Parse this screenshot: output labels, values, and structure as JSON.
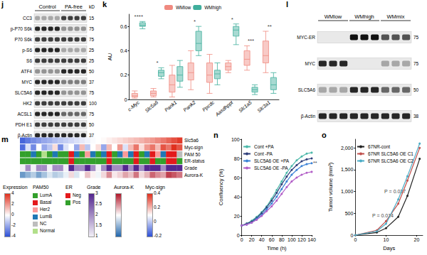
{
  "blots": [
    {
      "panel": "j",
      "kD_label": "kD",
      "groups": [
        {
          "label": "Control",
          "lanes": 4
        },
        {
          "label": "PA-free",
          "lanes": 4
        }
      ],
      "rows": [
        {
          "label": "CC3",
          "kD": 15,
          "intensity": [
            0.3,
            0.3,
            0.3,
            0.3,
            0.8,
            0.8,
            0.8,
            0.8
          ]
        },
        {
          "label": "p-P70 S6k",
          "kD": 75,
          "intensity": [
            0.9,
            0.9,
            0.9,
            0.9,
            0.4,
            0.4,
            0.4,
            0.4
          ]
        },
        {
          "label": "P70 S6k",
          "kD": 75,
          "intensity": [
            0.8,
            0.8,
            0.8,
            0.8,
            0.8,
            0.8,
            0.8,
            0.8
          ]
        },
        {
          "label": "p-S6",
          "kD": 25,
          "intensity": [
            0.9,
            0.9,
            0.9,
            0.9,
            0.3,
            0.3,
            0.3,
            0.3
          ]
        },
        {
          "label": "S6",
          "kD": 25,
          "intensity": [
            0.8,
            0.8,
            0.8,
            0.8,
            0.8,
            0.8,
            0.8,
            0.8
          ]
        },
        {
          "label": "ATF4",
          "kD": 50,
          "intensity": [
            0.4,
            0.4,
            0.4,
            0.4,
            0.9,
            0.9,
            0.9,
            0.9
          ]
        },
        {
          "label": "MYC",
          "kD": 37,
          "intensity": [
            0.9,
            0.9,
            0.9,
            0.9,
            0.5,
            0.5,
            0.5,
            0.5
          ]
        },
        {
          "label": "SLC5A6",
          "kD": 75,
          "intensity": [
            0.9,
            0.9,
            0.9,
            0.9,
            0.4,
            0.4,
            0.4,
            0.4
          ]
        },
        {
          "label": "HK2",
          "kD": 100,
          "intensity": [
            0.8,
            0.8,
            0.8,
            0.8,
            0.8,
            0.8,
            0.8,
            0.8
          ]
        },
        {
          "label": "ACSL1",
          "kD": 75,
          "intensity": [
            0.9,
            0.9,
            0.9,
            0.9,
            0.6,
            0.6,
            0.6,
            0.6
          ]
        },
        {
          "label": "PDH E1",
          "kD": 50,
          "intensity": [
            0.8,
            0.8,
            0.8,
            0.8,
            0.8,
            0.8,
            0.8,
            0.8
          ]
        },
        {
          "label": "β-Actin",
          "kD": 37,
          "intensity": [
            0.9,
            0.9,
            0.9,
            0.9,
            0.9,
            0.9,
            0.9,
            0.9
          ]
        }
      ]
    },
    {
      "panel": "l",
      "groups": [
        {
          "label": "WMlow",
          "lanes": 3
        },
        {
          "label": "WMhigh",
          "lanes": 3
        },
        {
          "label": "WMmix",
          "lanes": 3
        }
      ],
      "rows": [
        {
          "label": "MYC-ER",
          "kD": 75,
          "intensity": [
            0,
            0,
            0,
            1,
            1,
            1,
            0.7,
            0.7,
            0.7
          ]
        },
        {
          "label": "MYC",
          "kD": 75,
          "intensity": [
            0.9,
            0.9,
            0.9,
            0,
            0,
            0,
            0.3,
            0.3,
            0.3
          ]
        },
        {
          "label": "SLC5A6",
          "kD": 50,
          "intensity": [
            0.3,
            0.3,
            0.3,
            0.9,
            0.9,
            0.9,
            0.6,
            0.6,
            0.6
          ]
        },
        {
          "label": "β-Actin",
          "kD": 38,
          "intensity": [
            0.9,
            0.9,
            0.9,
            0.9,
            0.9,
            0.9,
            0.9,
            0.9,
            0.9
          ]
        }
      ]
    }
  ],
  "chart_data": [
    {
      "panel": "k",
      "type": "boxplot",
      "y_label": "AU",
      "legend": "top",
      "grid": false,
      "categories": [
        "c-Myc",
        "Slc5a6",
        "Pank1",
        "Pank2",
        "Ppcdc",
        "Aasdhppt",
        "Slc1a5",
        "Slc3a1"
      ],
      "ylim": [
        0,
        0.7
      ],
      "yticks": [
        0,
        0.2,
        0.4,
        0.6
      ],
      "series": [
        {
          "name": "WMlow",
          "color": "#f08a80",
          "boxes": [
            [
              0.01,
              0.02,
              0.03,
              0.05,
              0.07
            ],
            [
              0.02,
              0.03,
              0.05,
              0.07,
              0.09
            ],
            [
              0.02,
              0.06,
              0.12,
              0.2,
              0.28
            ],
            [
              0.08,
              0.16,
              0.22,
              0.3,
              0.4
            ],
            [
              0.05,
              0.14,
              0.2,
              0.3,
              0.37
            ],
            [
              0.22,
              0.24,
              0.27,
              0.3,
              0.32
            ],
            [
              0.24,
              0.28,
              0.33,
              0.4,
              0.44
            ],
            [
              0.22,
              0.3,
              0.36,
              0.48,
              0.56
            ]
          ]
        },
        {
          "name": "WMhigh",
          "color": "#3fae9c",
          "boxes": [
            [
              0.58,
              0.6,
              0.61,
              0.63,
              0.64
            ],
            [
              0.17,
              0.19,
              0.22,
              0.24,
              0.26
            ],
            [
              0.1,
              0.15,
              0.2,
              0.27,
              0.32
            ],
            [
              0.36,
              0.4,
              0.46,
              0.56,
              0.6
            ],
            [
              0.12,
              0.17,
              0.21,
              0.24,
              0.3
            ],
            [
              0.45,
              0.52,
              0.57,
              0.6,
              0.62
            ],
            [
              0.04,
              0.06,
              0.08,
              0.1,
              0.12
            ],
            [
              0.05,
              0.08,
              0.12,
              0.18,
              0.22
            ]
          ]
        }
      ],
      "annotations": [
        {
          "category": "c-Myc",
          "y": 0.65,
          "text": "****"
        },
        {
          "category": "Slc5a6",
          "y": 0.27,
          "text": "*"
        },
        {
          "category": "Pank2",
          "y": 0.61,
          "text": "*"
        },
        {
          "category": "Aasdhppt",
          "y": 0.63,
          "text": "*"
        },
        {
          "category": "Slc1a5",
          "y": 0.45,
          "text": "***"
        },
        {
          "category": "Slc3a1",
          "y": 0.57,
          "text": "**"
        }
      ]
    },
    {
      "panel": "m",
      "type": "heatmap",
      "tracks": [
        {
          "name": "Slc5a6",
          "legend": "Expression",
          "values": [
            -3.5,
            -3,
            -2.6,
            -2.3,
            -2,
            -1.8,
            -1.5,
            -1.3,
            -1.1,
            -0.9,
            -0.7,
            -0.5,
            -0.3,
            -0.1,
            0,
            0.1,
            0.3,
            0.5,
            0.7,
            0.9,
            1.1,
            1.3,
            1.5,
            1.8,
            2,
            2.3,
            2.6,
            3,
            3.4,
            3.8
          ]
        },
        {
          "name": "Myc-sign",
          "legend": "Myc-sign",
          "values": [
            -0.15,
            0.05,
            -0.1,
            0.1,
            -0.05,
            0,
            0.15,
            -0.1,
            0.05,
            0.1,
            -0.05,
            0.2,
            0,
            0.1,
            0.15,
            -0.05,
            0.2,
            0.1,
            0.25,
            0.05,
            0.2,
            0.3,
            0.15,
            0.25,
            0.3,
            0.2,
            0.35,
            0.3,
            0.4,
            0.35
          ]
        },
        {
          "name": "PAM 50",
          "legend": "PAM50",
          "values": [
            "LumA",
            "LumA",
            "LumB",
            "LumA",
            "Normal",
            "LumA",
            "LumB",
            "LumA",
            "LumA",
            "Basal",
            "LumB",
            "LumA",
            "Her2",
            "LumB",
            "LumA",
            "LumB",
            "Basal",
            "LumA",
            "LumB",
            "Her2",
            "LumB",
            "Basal",
            "LumA",
            "LumB",
            "Basal",
            "Her2",
            "LumB",
            "Basal",
            "Basal",
            "NC"
          ]
        },
        {
          "name": "ER-status",
          "legend": "ER",
          "values": [
            "Pos",
            "Pos",
            "Pos",
            "Pos",
            "Pos",
            "Pos",
            "Pos",
            "Pos",
            "Pos",
            "Neg",
            "Pos",
            "Pos",
            "Pos",
            "Pos",
            "Pos",
            "Pos",
            "Neg",
            "Pos",
            "Pos",
            "Pos",
            "Pos",
            "Neg",
            "Pos",
            "Pos",
            "Neg",
            "Pos",
            "Pos",
            "Neg",
            "Neg",
            "Pos"
          ]
        },
        {
          "name": "Grade",
          "legend": "Grade",
          "values": [
            1,
            2,
            1,
            2,
            2,
            1,
            2,
            2,
            1,
            3,
            2,
            2,
            3,
            2,
            1,
            2,
            3,
            2,
            2,
            3,
            2,
            3,
            2,
            3,
            3,
            3,
            2,
            3,
            3,
            3
          ]
        },
        {
          "name": "Aurora-K",
          "legend": "Aurora-K",
          "values": [
            -2,
            -1.5,
            -1,
            -1.8,
            -1.2,
            -0.5,
            -1,
            -0.8,
            -0.3,
            0.5,
            -0.5,
            0,
            0.8,
            0.2,
            -0.2,
            0.5,
            1.5,
            0.3,
            0.6,
            1.2,
            0.8,
            1.8,
            0.5,
            1,
            2,
            1.5,
            1.2,
            2.5,
            2.2,
            1.8
          ]
        }
      ],
      "color_legends": [
        {
          "title": "Expression",
          "range": [
            -4,
            4
          ],
          "ticks": [
            4,
            2,
            0,
            -2,
            -4
          ],
          "colors": [
            "#2c4fd6",
            "#ffffff",
            "#e0301e"
          ]
        },
        {
          "title": "PAM50",
          "categories": [
            "LumA",
            "Basal",
            "Her2",
            "LumB",
            "NC",
            "Normal"
          ],
          "colors": [
            "#33a02c",
            "#e31a1c",
            "#fb9a99",
            "#1f78b4",
            "#bdbdbd",
            "#b2df8a"
          ]
        },
        {
          "title": "ER",
          "categories": [
            "Neg",
            "Pos"
          ],
          "colors": [
            "#e31a1c",
            "#33a02c"
          ]
        },
        {
          "title": "Grade",
          "range": [
            1,
            3
          ],
          "ticks": [
            3,
            2.5,
            2,
            1.5,
            1
          ],
          "colors": [
            "#f2f0f7",
            "#54278f"
          ]
        },
        {
          "title": "Aurora-K",
          "range": [
            -3,
            3
          ],
          "colors": [
            "#2166ac",
            "#ffffff",
            "#b2182b"
          ]
        },
        {
          "title": "Myc-sign",
          "range": [
            -0.2,
            0.4
          ],
          "ticks": [
            0.4,
            0.2,
            0,
            -0.2
          ],
          "colors": [
            "#2c4fd6",
            "#ffffff",
            "#e0301e"
          ]
        }
      ]
    },
    {
      "panel": "n",
      "type": "line",
      "x_label": "Time (h)",
      "y_label": "Confluency (%)",
      "legend": "upper left",
      "grid": false,
      "marker": "circle",
      "x": [
        0,
        10,
        20,
        30,
        40,
        50,
        60,
        70,
        80,
        90,
        100,
        110,
        120,
        130,
        140
      ],
      "xlim": [
        0,
        140
      ],
      "xticks": [
        0,
        20,
        40,
        60,
        80,
        100,
        120,
        140
      ],
      "ylim": [
        0,
        100
      ],
      "yticks": [
        0,
        20,
        40,
        60,
        80,
        100
      ],
      "series": [
        {
          "name": "Cont +PA",
          "color": "#4bb8a9",
          "values": [
            10,
            12,
            15,
            19,
            24,
            30,
            38,
            47,
            56,
            65,
            72,
            78,
            82,
            85,
            86
          ]
        },
        {
          "name": "Cont -PA",
          "color": "#2f3e7a",
          "values": [
            10,
            12,
            14,
            18,
            23,
            29,
            36,
            44,
            53,
            61,
            68,
            73,
            77,
            79,
            80
          ]
        },
        {
          "name": "SLC5A6 OE +PA",
          "color": "#3b82d6",
          "values": [
            10,
            11,
            13,
            17,
            21,
            27,
            33,
            40,
            48,
            56,
            63,
            68,
            72,
            74,
            75
          ]
        },
        {
          "name": "SLC5A6 OE -PA",
          "color": "#b25ec7",
          "values": [
            10,
            11,
            13,
            16,
            20,
            25,
            30,
            36,
            43,
            50,
            56,
            60,
            63,
            65,
            66
          ]
        }
      ],
      "annotations": [
        {
          "x": 140,
          "y": 75,
          "text": "**"
        }
      ]
    },
    {
      "panel": "o",
      "type": "line",
      "x_label": "Days",
      "y_label": "Tumor volume (mm³)",
      "legend": "upper left",
      "grid": false,
      "marker": "circle",
      "x": [
        0,
        7,
        10,
        14,
        17,
        21
      ],
      "xlim": [
        0,
        22
      ],
      "xticks": [
        0,
        10,
        20
      ],
      "ylim": [
        0,
        2200
      ],
      "yticks": [
        0,
        500,
        {
          "value": 1000,
          "label": "1,000"
        },
        {
          "value": 1500,
          "label": "1,500"
        },
        {
          "value": 2000,
          "label": "2,000"
        }
      ],
      "series": [
        {
          "name": "67NR-cont",
          "color": "#222222",
          "values": [
            0,
            60,
            160,
            420,
            900,
            1750
          ]
        },
        {
          "name": "67NR SLC5A6 OE C1",
          "color": "#c0504d",
          "values": [
            0,
            110,
            320,
            720,
            1250,
            2000
          ]
        },
        {
          "name": "67NR SLC5A6 OE C2",
          "color": "#4bacc6",
          "values": [
            0,
            90,
            260,
            820,
            1350,
            2100
          ]
        }
      ],
      "annotations": [
        {
          "x": 9,
          "y": 1000,
          "text": "P = 0.037"
        },
        {
          "x": 5,
          "y": 450,
          "text": "P = 0.014"
        }
      ]
    }
  ]
}
